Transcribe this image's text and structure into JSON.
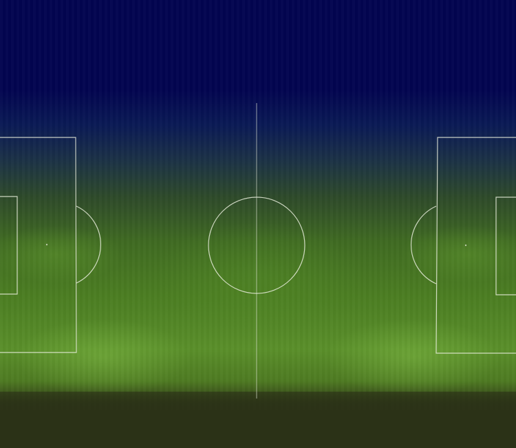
{
  "scene": {
    "subject": "soccer-pitch-night",
    "colors": {
      "sky": "#02034a",
      "grass": "#4b7d22",
      "ground": "#2b3217",
      "lines": "#e8ecdc"
    }
  }
}
